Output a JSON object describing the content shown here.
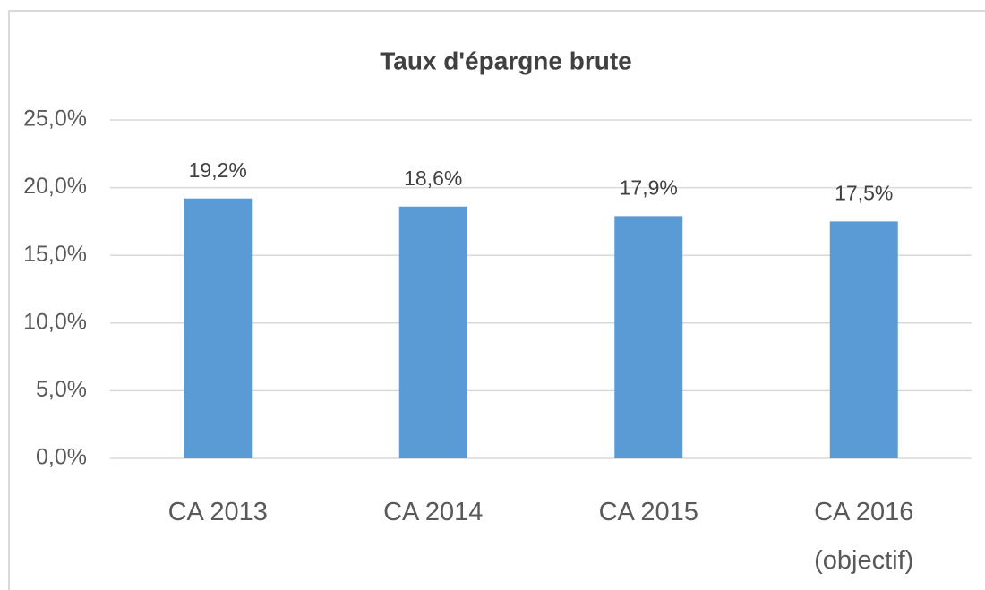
{
  "chart_data": {
    "type": "bar",
    "title": "Taux d'épargne brute",
    "categories": [
      "CA 2013",
      "CA 2014",
      "CA 2015",
      "CA 2016 (objectif)"
    ],
    "values": [
      19.2,
      18.6,
      17.9,
      17.5
    ],
    "value_labels": [
      "19,2%",
      "18,6%",
      "17,9%",
      "17,5%"
    ],
    "color": "#5b9bd5",
    "ylim": [
      0,
      25
    ],
    "yticks": [
      {
        "value": 0,
        "label": "0,0%"
      },
      {
        "value": 5,
        "label": "5,0%"
      },
      {
        "value": 10,
        "label": "10,0%"
      },
      {
        "value": 15,
        "label": "15,0%"
      },
      {
        "value": 20,
        "label": "20,0%"
      },
      {
        "value": 25,
        "label": "25,0%"
      }
    ],
    "grid": true
  }
}
